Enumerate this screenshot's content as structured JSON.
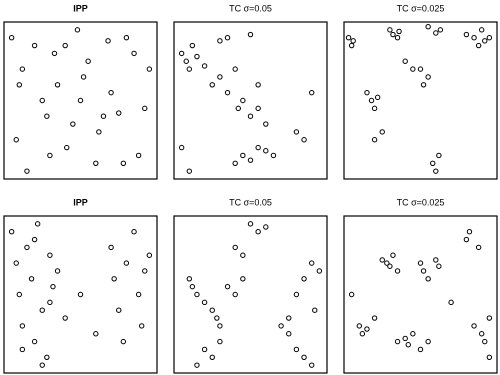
{
  "chart_data": [
    {
      "type": "scatter",
      "title": "IPP",
      "title_bold": true,
      "xlim": [
        0,
        1
      ],
      "ylim": [
        0,
        1
      ],
      "x": [
        0.05,
        0.12,
        0.2,
        0.28,
        0.35,
        0.41,
        0.48,
        0.55,
        0.62,
        0.7,
        0.78,
        0.85,
        0.92,
        0.08,
        0.15,
        0.25,
        0.33,
        0.45,
        0.52,
        0.6,
        0.68,
        0.75,
        0.88,
        0.95,
        0.1,
        0.3,
        0.5,
        0.65,
        0.8,
        0.4
      ],
      "y": [
        0.9,
        0.7,
        0.85,
        0.4,
        0.6,
        0.2,
        0.95,
        0.75,
        0.3,
        0.55,
        0.1,
        0.8,
        0.45,
        0.25,
        0.05,
        0.5,
        0.8,
        0.35,
        0.65,
        0.1,
        0.88,
        0.42,
        0.15,
        0.7,
        0.6,
        0.15,
        0.5,
        0.4,
        0.9,
        0.85
      ]
    },
    {
      "type": "scatter",
      "title": "TC σ=0.05",
      "title_bold": false,
      "xlim": [
        0,
        1
      ],
      "ylim": [
        0,
        1
      ],
      "x": [
        0.05,
        0.08,
        0.1,
        0.12,
        0.15,
        0.2,
        0.25,
        0.3,
        0.35,
        0.4,
        0.42,
        0.45,
        0.5,
        0.55,
        0.6,
        0.45,
        0.5,
        0.55,
        0.6,
        0.65,
        0.3,
        0.35,
        0.4,
        0.5,
        0.55,
        0.8,
        0.85,
        0.9,
        0.05,
        0.1
      ],
      "y": [
        0.8,
        0.75,
        0.7,
        0.85,
        0.78,
        0.72,
        0.6,
        0.65,
        0.55,
        0.7,
        0.45,
        0.5,
        0.4,
        0.45,
        0.35,
        0.15,
        0.12,
        0.2,
        0.18,
        0.15,
        0.88,
        0.9,
        0.1,
        0.92,
        0.6,
        0.3,
        0.25,
        0.55,
        0.2,
        0.05
      ]
    },
    {
      "type": "scatter",
      "title": "TC σ=0.025",
      "title_bold": false,
      "xlim": [
        0,
        1
      ],
      "ylim": [
        0,
        1
      ],
      "x": [
        0.03,
        0.05,
        0.06,
        0.3,
        0.32,
        0.35,
        0.36,
        0.55,
        0.6,
        0.63,
        0.8,
        0.85,
        0.88,
        0.9,
        0.92,
        0.95,
        0.15,
        0.18,
        0.2,
        0.22,
        0.5,
        0.55,
        0.52,
        0.58,
        0.6,
        0.2,
        0.25,
        0.4,
        0.45,
        0.62
      ],
      "y": [
        0.9,
        0.85,
        0.88,
        0.95,
        0.92,
        0.9,
        0.94,
        0.97,
        0.93,
        0.95,
        0.92,
        0.9,
        0.85,
        0.95,
        0.88,
        0.9,
        0.55,
        0.5,
        0.45,
        0.52,
        0.7,
        0.65,
        0.6,
        0.1,
        0.05,
        0.25,
        0.3,
        0.75,
        0.7,
        0.15
      ]
    },
    {
      "type": "scatter",
      "title": "IPP",
      "title_bold": true,
      "xlim": [
        0,
        1
      ],
      "ylim": [
        0,
        1
      ],
      "x": [
        0.05,
        0.08,
        0.1,
        0.12,
        0.15,
        0.18,
        0.2,
        0.22,
        0.25,
        0.28,
        0.3,
        0.32,
        0.35,
        0.4,
        0.12,
        0.2,
        0.25,
        0.3,
        0.7,
        0.72,
        0.75,
        0.78,
        0.8,
        0.85,
        0.88,
        0.9,
        0.92,
        0.95,
        0.5,
        0.6
      ],
      "y": [
        0.9,
        0.7,
        0.5,
        0.3,
        0.8,
        0.6,
        0.2,
        0.95,
        0.4,
        0.1,
        0.75,
        0.55,
        0.65,
        0.35,
        0.15,
        0.85,
        0.05,
        0.45,
        0.8,
        0.6,
        0.4,
        0.2,
        0.7,
        0.9,
        0.5,
        0.3,
        0.65,
        0.75,
        0.5,
        0.25
      ]
    },
    {
      "type": "scatter",
      "title": "TC σ=0.05",
      "title_bold": false,
      "xlim": [
        0,
        1
      ],
      "ylim": [
        0,
        1
      ],
      "x": [
        0.1,
        0.12,
        0.15,
        0.2,
        0.25,
        0.28,
        0.3,
        0.35,
        0.4,
        0.45,
        0.2,
        0.25,
        0.15,
        0.3,
        0.5,
        0.55,
        0.6,
        0.7,
        0.75,
        0.8,
        0.85,
        0.9,
        0.95,
        0.8,
        0.85,
        0.9,
        0.75,
        0.92,
        0.4,
        0.45
      ],
      "y": [
        0.6,
        0.55,
        0.5,
        0.45,
        0.4,
        0.35,
        0.3,
        0.55,
        0.5,
        0.6,
        0.15,
        0.1,
        0.05,
        0.2,
        0.95,
        0.9,
        0.93,
        0.3,
        0.35,
        0.5,
        0.6,
        0.7,
        0.65,
        0.15,
        0.1,
        0.05,
        0.25,
        0.4,
        0.8,
        0.75
      ]
    },
    {
      "type": "scatter",
      "title": "TC σ=0.025",
      "title_bold": false,
      "xlim": [
        0,
        1
      ],
      "ylim": [
        0,
        1
      ],
      "x": [
        0.25,
        0.28,
        0.3,
        0.32,
        0.35,
        0.5,
        0.52,
        0.55,
        0.6,
        0.62,
        0.1,
        0.12,
        0.15,
        0.2,
        0.35,
        0.4,
        0.42,
        0.45,
        0.5,
        0.55,
        0.85,
        0.9,
        0.92,
        0.95,
        0.88,
        0.8,
        0.82,
        0.05,
        0.7,
        0.95
      ],
      "y": [
        0.72,
        0.7,
        0.68,
        0.75,
        0.65,
        0.7,
        0.65,
        0.6,
        0.72,
        0.68,
        0.3,
        0.25,
        0.28,
        0.35,
        0.2,
        0.22,
        0.18,
        0.25,
        0.15,
        0.2,
        0.3,
        0.25,
        0.2,
        0.35,
        0.8,
        0.85,
        0.9,
        0.5,
        0.45,
        0.1
      ]
    }
  ]
}
